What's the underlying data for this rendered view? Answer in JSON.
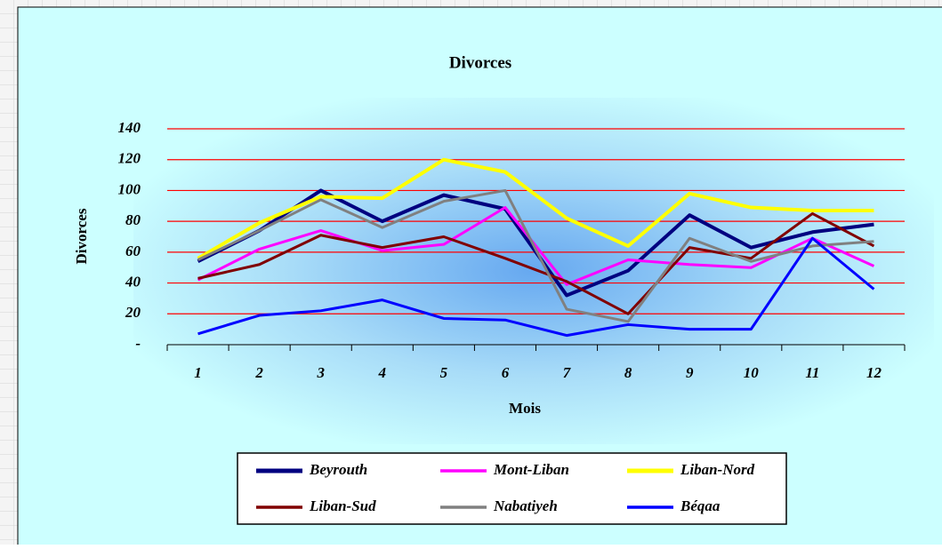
{
  "chart_data": {
    "type": "line",
    "title": "Divorces",
    "x_label": "Mois",
    "y_label": "Divorces",
    "categories": [
      "1",
      "2",
      "3",
      "4",
      "5",
      "6",
      "7",
      "8",
      "9",
      "10",
      "11",
      "12"
    ],
    "series": [
      {
        "name": "Beyrouth",
        "color": "#000080",
        "values": [
          54,
          74,
          100,
          80,
          97,
          88,
          32,
          48,
          84,
          63,
          73,
          78
        ]
      },
      {
        "name": "Mont-Liban",
        "color": "#ff00ff",
        "values": [
          42,
          62,
          74,
          61,
          65,
          89,
          39,
          55,
          52,
          50,
          69,
          51
        ]
      },
      {
        "name": "Liban-Nord",
        "color": "#ffff00",
        "values": [
          56,
          79,
          96,
          95,
          120,
          112,
          82,
          64,
          98,
          89,
          87,
          87
        ]
      },
      {
        "name": "Liban-Sud",
        "color": "#800000",
        "values": [
          43,
          52,
          71,
          63,
          70,
          56,
          41,
          20,
          63,
          56,
          85,
          64
        ]
      },
      {
        "name": "Nabatiyeh",
        "color": "#808080",
        "values": [
          55,
          74,
          94,
          76,
          93,
          100,
          23,
          15,
          69,
          54,
          64,
          67
        ]
      },
      {
        "name": "Béqaa",
        "color": "#0000ff",
        "values": [
          7,
          19,
          22,
          29,
          17,
          16,
          6,
          13,
          10,
          10,
          69,
          36
        ]
      }
    ],
    "ylim": [
      0,
      140
    ],
    "yticks": [
      {
        "value": 0,
        "label": "-"
      },
      20,
      40,
      60,
      80,
      100,
      120,
      140
    ],
    "grid": true,
    "grid_color": "#ff0000",
    "legend": "bottom"
  }
}
